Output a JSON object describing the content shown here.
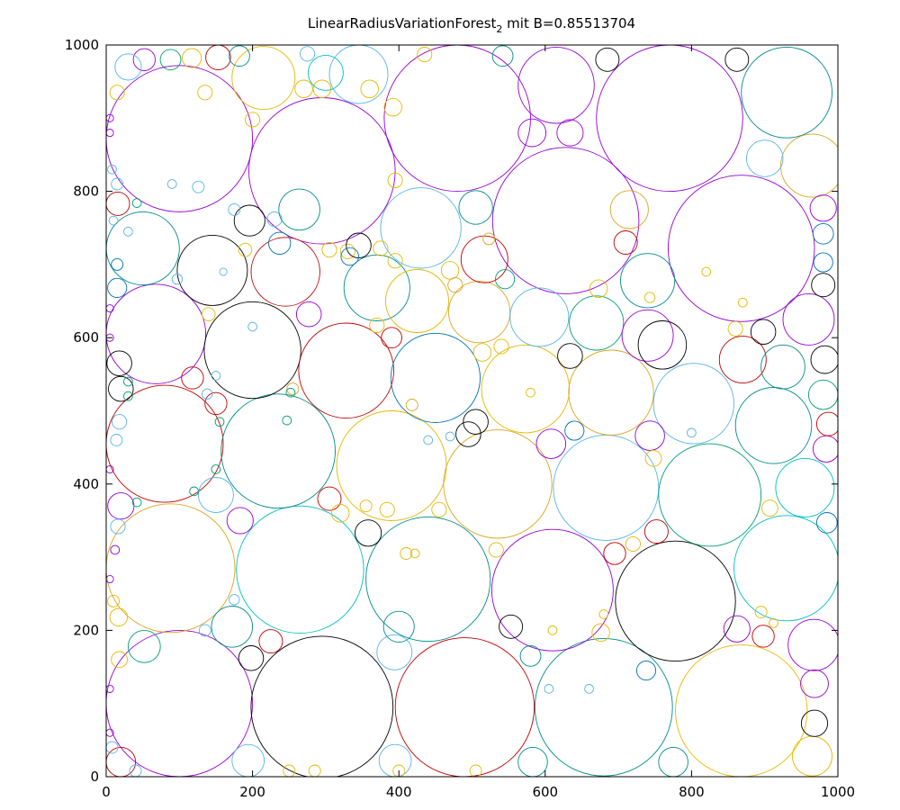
{
  "chart_data": {
    "type": "scatter",
    "title": "LinearRadiusVariationForest",
    "title_subscript": "2",
    "title_suffix": " mit B=0.85513704",
    "xlim": [
      0,
      1000
    ],
    "ylim": [
      0,
      1000
    ],
    "xticks": [
      0,
      200,
      400,
      600,
      800,
      1000
    ],
    "yticks": [
      0,
      200,
      400,
      600,
      800,
      1000
    ],
    "grid": false,
    "legend": "none",
    "colors": {
      "P": "#9400d3",
      "C": "#009e73",
      "L": "#56b4e9",
      "Y": "#e6b800",
      "B": "#0072b2",
      "R": "#c00000",
      "K": "#000000",
      "T": "#008b8b",
      "G": "#daa520",
      "S": "#00bfbf"
    },
    "circles": [
      {
        "x": 100,
        "y": 100,
        "r": 100,
        "c": "P"
      },
      {
        "x": 295,
        "y": 95,
        "r": 97,
        "c": "K"
      },
      {
        "x": 490,
        "y": 95,
        "r": 95,
        "c": "R"
      },
      {
        "x": 680,
        "y": 95,
        "r": 94,
        "c": "T"
      },
      {
        "x": 868,
        "y": 90,
        "r": 90,
        "c": "Y"
      },
      {
        "x": 88,
        "y": 285,
        "r": 88,
        "c": "G"
      },
      {
        "x": 265,
        "y": 283,
        "r": 87,
        "c": "S"
      },
      {
        "x": 440,
        "y": 270,
        "r": 85,
        "c": "T"
      },
      {
        "x": 610,
        "y": 255,
        "r": 83,
        "c": "P"
      },
      {
        "x": 778,
        "y": 240,
        "r": 82,
        "c": "K"
      },
      {
        "x": 930,
        "y": 285,
        "r": 72,
        "c": "S"
      },
      {
        "x": 80,
        "y": 455,
        "r": 80,
        "c": "R"
      },
      {
        "x": 235,
        "y": 445,
        "r": 78,
        "c": "T"
      },
      {
        "x": 390,
        "y": 425,
        "r": 75,
        "c": "Y"
      },
      {
        "x": 535,
        "y": 400,
        "r": 74,
        "c": "G"
      },
      {
        "x": 683,
        "y": 395,
        "r": 72,
        "c": "L"
      },
      {
        "x": 825,
        "y": 385,
        "r": 70,
        "c": "C"
      },
      {
        "x": 955,
        "y": 395,
        "r": 40,
        "c": "S"
      },
      {
        "x": 68,
        "y": 605,
        "r": 68,
        "c": "P"
      },
      {
        "x": 200,
        "y": 583,
        "r": 66,
        "c": "K"
      },
      {
        "x": 328,
        "y": 555,
        "r": 65,
        "c": "R"
      },
      {
        "x": 450,
        "y": 545,
        "r": 61,
        "c": "B"
      },
      {
        "x": 573,
        "y": 530,
        "r": 60,
        "c": "Y"
      },
      {
        "x": 690,
        "y": 525,
        "r": 58,
        "c": "G"
      },
      {
        "x": 803,
        "y": 510,
        "r": 55,
        "c": "L"
      },
      {
        "x": 912,
        "y": 480,
        "r": 52,
        "c": "T"
      },
      {
        "x": 100,
        "y": 872,
        "r": 100,
        "c": "P"
      },
      {
        "x": 295,
        "y": 828,
        "r": 100,
        "c": "P"
      },
      {
        "x": 480,
        "y": 900,
        "r": 100,
        "c": "P"
      },
      {
        "x": 628,
        "y": 760,
        "r": 100,
        "c": "P"
      },
      {
        "x": 770,
        "y": 900,
        "r": 100,
        "c": "P"
      },
      {
        "x": 868,
        "y": 722,
        "r": 100,
        "c": "P"
      },
      {
        "x": 930,
        "y": 935,
        "r": 62,
        "c": "T"
      },
      {
        "x": 615,
        "y": 945,
        "r": 52,
        "c": "P"
      },
      {
        "x": 345,
        "y": 960,
        "r": 40,
        "c": "L"
      },
      {
        "x": 215,
        "y": 955,
        "r": 43,
        "c": "Y"
      },
      {
        "x": 50,
        "y": 722,
        "r": 50,
        "c": "T"
      },
      {
        "x": 145,
        "y": 692,
        "r": 48,
        "c": "K"
      },
      {
        "x": 245,
        "y": 690,
        "r": 47,
        "c": "R"
      },
      {
        "x": 370,
        "y": 668,
        "r": 45,
        "c": "T"
      },
      {
        "x": 430,
        "y": 750,
        "r": 55,
        "c": "L"
      },
      {
        "x": 425,
        "y": 650,
        "r": 43,
        "c": "Y"
      },
      {
        "x": 510,
        "y": 635,
        "r": 42,
        "c": "G"
      },
      {
        "x": 592,
        "y": 628,
        "r": 40,
        "c": "L"
      },
      {
        "x": 670,
        "y": 620,
        "r": 37,
        "c": "C"
      },
      {
        "x": 740,
        "y": 678,
        "r": 37,
        "c": "T"
      },
      {
        "x": 740,
        "y": 603,
        "r": 35,
        "c": "P"
      },
      {
        "x": 870,
        "y": 570,
        "r": 32,
        "c": "R"
      },
      {
        "x": 960,
        "y": 625,
        "r": 35,
        "c": "P"
      },
      {
        "x": 925,
        "y": 560,
        "r": 30,
        "c": "T"
      },
      {
        "x": 965,
        "y": 835,
        "r": 43,
        "c": "G"
      },
      {
        "x": 900,
        "y": 845,
        "r": 25,
        "c": "L"
      },
      {
        "x": 517,
        "y": 707,
        "r": 32,
        "c": "R"
      },
      {
        "x": 967,
        "y": 180,
        "r": 35,
        "c": "P"
      },
      {
        "x": 965,
        "y": 28,
        "r": 27,
        "c": "Y"
      },
      {
        "x": 968,
        "y": 73,
        "r": 18,
        "c": "K"
      },
      {
        "x": 968,
        "y": 127,
        "r": 19,
        "c": "P"
      },
      {
        "x": 760,
        "y": 590,
        "r": 33,
        "c": "K"
      },
      {
        "x": 52,
        "y": 178,
        "r": 22,
        "c": "C"
      },
      {
        "x": 172,
        "y": 205,
        "r": 28,
        "c": "T"
      },
      {
        "x": 400,
        "y": 205,
        "r": 21,
        "c": "T"
      },
      {
        "x": 394,
        "y": 170,
        "r": 24,
        "c": "L"
      },
      {
        "x": 194,
        "y": 22,
        "r": 22,
        "c": "L"
      },
      {
        "x": 395,
        "y": 22,
        "r": 22,
        "c": "L"
      },
      {
        "x": 583,
        "y": 20,
        "r": 20,
        "c": "T"
      },
      {
        "x": 775,
        "y": 20,
        "r": 20,
        "c": "T"
      },
      {
        "x": 150,
        "y": 385,
        "r": 24,
        "c": "L"
      },
      {
        "x": 183,
        "y": 350,
        "r": 18,
        "c": "P"
      },
      {
        "x": 358,
        "y": 333,
        "r": 18,
        "c": "K"
      },
      {
        "x": 305,
        "y": 380,
        "r": 16,
        "c": "R"
      },
      {
        "x": 320,
        "y": 360,
        "r": 12,
        "c": "Y"
      },
      {
        "x": 495,
        "y": 468,
        "r": 17,
        "c": "K"
      },
      {
        "x": 505,
        "y": 485,
        "r": 17,
        "c": "K"
      },
      {
        "x": 608,
        "y": 455,
        "r": 20,
        "c": "P"
      },
      {
        "x": 640,
        "y": 473,
        "r": 13,
        "c": "B"
      },
      {
        "x": 743,
        "y": 466,
        "r": 20,
        "c": "P"
      },
      {
        "x": 748,
        "y": 435,
        "r": 11,
        "c": "Y"
      },
      {
        "x": 752,
        "y": 335,
        "r": 16,
        "c": "R"
      },
      {
        "x": 695,
        "y": 305,
        "r": 15,
        "c": "R"
      },
      {
        "x": 720,
        "y": 318,
        "r": 10,
        "c": "Y"
      },
      {
        "x": 862,
        "y": 202,
        "r": 18,
        "c": "P"
      },
      {
        "x": 898,
        "y": 192,
        "r": 15,
        "c": "R"
      },
      {
        "x": 985,
        "y": 347,
        "r": 14,
        "c": "B"
      },
      {
        "x": 907,
        "y": 367,
        "r": 11,
        "c": "Y"
      },
      {
        "x": 984,
        "y": 448,
        "r": 18,
        "c": "P"
      },
      {
        "x": 987,
        "y": 482,
        "r": 16,
        "c": "R"
      },
      {
        "x": 980,
        "y": 522,
        "r": 20,
        "c": "C"
      },
      {
        "x": 982,
        "y": 570,
        "r": 19,
        "c": "K"
      },
      {
        "x": 980,
        "y": 672,
        "r": 16,
        "c": "K"
      },
      {
        "x": 980,
        "y": 703,
        "r": 13,
        "c": "B"
      },
      {
        "x": 980,
        "y": 742,
        "r": 14,
        "c": "B"
      },
      {
        "x": 980,
        "y": 777,
        "r": 18,
        "c": "P"
      },
      {
        "x": 898,
        "y": 608,
        "r": 17,
        "c": "K"
      },
      {
        "x": 860,
        "y": 612,
        "r": 10,
        "c": "Y"
      },
      {
        "x": 676,
        "y": 197,
        "r": 12,
        "c": "Y"
      },
      {
        "x": 553,
        "y": 205,
        "r": 16,
        "c": "K"
      },
      {
        "x": 580,
        "y": 165,
        "r": 14,
        "c": "T"
      },
      {
        "x": 738,
        "y": 145,
        "r": 13,
        "c": "B"
      },
      {
        "x": 198,
        "y": 162,
        "r": 17,
        "c": "K"
      },
      {
        "x": 225,
        "y": 185,
        "r": 16,
        "c": "R"
      },
      {
        "x": 175,
        "y": 242,
        "r": 7,
        "c": "L"
      },
      {
        "x": 135,
        "y": 200,
        "r": 8,
        "c": "L"
      },
      {
        "x": 18,
        "y": 160,
        "r": 11,
        "c": "Y"
      },
      {
        "x": 17,
        "y": 218,
        "r": 12,
        "c": "Y"
      },
      {
        "x": 10,
        "y": 240,
        "r": 8,
        "c": "Y"
      },
      {
        "x": 20,
        "y": 20,
        "r": 20,
        "c": "R"
      },
      {
        "x": 8,
        "y": 40,
        "r": 8,
        "c": "L"
      },
      {
        "x": 40,
        "y": 8,
        "r": 8,
        "c": "L"
      },
      {
        "x": 250,
        "y": 8,
        "r": 8,
        "c": "Y"
      },
      {
        "x": 285,
        "y": 8,
        "r": 8,
        "c": "Y"
      },
      {
        "x": 400,
        "y": 8,
        "r": 8,
        "c": "Y"
      },
      {
        "x": 505,
        "y": 8,
        "r": 8,
        "c": "Y"
      },
      {
        "x": 18,
        "y": 565,
        "r": 17,
        "c": "K"
      },
      {
        "x": 20,
        "y": 530,
        "r": 17,
        "c": "K"
      },
      {
        "x": 18,
        "y": 485,
        "r": 10,
        "c": "L"
      },
      {
        "x": 14,
        "y": 460,
        "r": 8,
        "c": "L"
      },
      {
        "x": 20,
        "y": 370,
        "r": 18,
        "c": "P"
      },
      {
        "x": 16,
        "y": 342,
        "r": 10,
        "c": "L"
      },
      {
        "x": 42,
        "y": 375,
        "r": 6,
        "c": "C"
      },
      {
        "x": 12,
        "y": 310,
        "r": 6,
        "c": "P"
      },
      {
        "x": 15,
        "y": 668,
        "r": 13,
        "c": "B"
      },
      {
        "x": 15,
        "y": 700,
        "r": 8,
        "c": "B"
      },
      {
        "x": 16,
        "y": 783,
        "r": 16,
        "c": "R"
      },
      {
        "x": 15,
        "y": 810,
        "r": 8,
        "c": "L"
      },
      {
        "x": 8,
        "y": 830,
        "r": 6,
        "c": "L"
      },
      {
        "x": 10,
        "y": 760,
        "r": 6,
        "c": "L"
      },
      {
        "x": 30,
        "y": 745,
        "r": 6,
        "c": "L"
      },
      {
        "x": 42,
        "y": 784,
        "r": 6,
        "c": "C"
      },
      {
        "x": 52,
        "y": 980,
        "r": 15,
        "c": "P"
      },
      {
        "x": 30,
        "y": 970,
        "r": 18,
        "c": "L"
      },
      {
        "x": 15,
        "y": 935,
        "r": 10,
        "c": "Y"
      },
      {
        "x": 88,
        "y": 980,
        "r": 14,
        "c": "C"
      },
      {
        "x": 117,
        "y": 982,
        "r": 13,
        "c": "Y"
      },
      {
        "x": 153,
        "y": 983,
        "r": 17,
        "c": "R"
      },
      {
        "x": 182,
        "y": 985,
        "r": 14,
        "c": "T"
      },
      {
        "x": 196,
        "y": 760,
        "r": 21,
        "c": "K"
      },
      {
        "x": 230,
        "y": 762,
        "r": 10,
        "c": "L"
      },
      {
        "x": 237,
        "y": 729,
        "r": 15,
        "c": "B"
      },
      {
        "x": 190,
        "y": 720,
        "r": 9,
        "c": "Y"
      },
      {
        "x": 175,
        "y": 775,
        "r": 8,
        "c": "L"
      },
      {
        "x": 305,
        "y": 720,
        "r": 10,
        "c": "Y"
      },
      {
        "x": 330,
        "y": 718,
        "r": 10,
        "c": "Y"
      },
      {
        "x": 277,
        "y": 632,
        "r": 17,
        "c": "P"
      },
      {
        "x": 264,
        "y": 775,
        "r": 28,
        "c": "T"
      },
      {
        "x": 345,
        "y": 726,
        "r": 17,
        "c": "K"
      },
      {
        "x": 333,
        "y": 711,
        "r": 12,
        "c": "B"
      },
      {
        "x": 375,
        "y": 722,
        "r": 10,
        "c": "Y"
      },
      {
        "x": 395,
        "y": 705,
        "r": 10,
        "c": "Y"
      },
      {
        "x": 370,
        "y": 617,
        "r": 10,
        "c": "Y"
      },
      {
        "x": 390,
        "y": 600,
        "r": 14,
        "c": "R"
      },
      {
        "x": 470,
        "y": 692,
        "r": 12,
        "c": "Y"
      },
      {
        "x": 477,
        "y": 672,
        "r": 10,
        "c": "G"
      },
      {
        "x": 545,
        "y": 680,
        "r": 13,
        "c": "C"
      },
      {
        "x": 523,
        "y": 735,
        "r": 8,
        "c": "G"
      },
      {
        "x": 505,
        "y": 778,
        "r": 23,
        "c": "T"
      },
      {
        "x": 540,
        "y": 588,
        "r": 10,
        "c": "Y"
      },
      {
        "x": 514,
        "y": 580,
        "r": 12,
        "c": "Y"
      },
      {
        "x": 634,
        "y": 575,
        "r": 17,
        "c": "K"
      },
      {
        "x": 673,
        "y": 667,
        "r": 12,
        "c": "Y"
      },
      {
        "x": 710,
        "y": 730,
        "r": 16,
        "c": "R"
      },
      {
        "x": 715,
        "y": 775,
        "r": 26,
        "c": "G"
      },
      {
        "x": 582,
        "y": 880,
        "r": 19,
        "c": "P"
      },
      {
        "x": 634,
        "y": 880,
        "r": 18,
        "c": "P"
      },
      {
        "x": 685,
        "y": 980,
        "r": 16,
        "c": "K"
      },
      {
        "x": 862,
        "y": 980,
        "r": 16,
        "c": "K"
      },
      {
        "x": 542,
        "y": 985,
        "r": 14,
        "c": "T"
      },
      {
        "x": 435,
        "y": 987,
        "r": 10,
        "c": "Y"
      },
      {
        "x": 392,
        "y": 915,
        "r": 12,
        "c": "Y"
      },
      {
        "x": 395,
        "y": 815,
        "r": 10,
        "c": "Y"
      },
      {
        "x": 200,
        "y": 898,
        "r": 10,
        "c": "Y"
      },
      {
        "x": 270,
        "y": 940,
        "r": 12,
        "c": "Y"
      },
      {
        "x": 295,
        "y": 940,
        "r": 12,
        "c": "Y"
      },
      {
        "x": 360,
        "y": 940,
        "r": 12,
        "c": "Y"
      },
      {
        "x": 275,
        "y": 988,
        "r": 10,
        "c": "L"
      },
      {
        "x": 300,
        "y": 962,
        "r": 24,
        "c": "S"
      },
      {
        "x": 135,
        "y": 935,
        "r": 10,
        "c": "Y"
      },
      {
        "x": 118,
        "y": 545,
        "r": 15,
        "c": "R"
      },
      {
        "x": 150,
        "y": 510,
        "r": 15,
        "c": "R"
      },
      {
        "x": 155,
        "y": 485,
        "r": 6,
        "c": "C"
      },
      {
        "x": 150,
        "y": 548,
        "r": 6,
        "c": "L"
      },
      {
        "x": 138,
        "y": 523,
        "r": 7,
        "c": "L"
      },
      {
        "x": 255,
        "y": 530,
        "r": 8,
        "c": "G"
      },
      {
        "x": 140,
        "y": 632,
        "r": 9,
        "c": "Y"
      },
      {
        "x": 97,
        "y": 680,
        "r": 7,
        "c": "L"
      },
      {
        "x": 120,
        "y": 390,
        "r": 6,
        "c": "C"
      },
      {
        "x": 150,
        "y": 420,
        "r": 6,
        "c": "C"
      },
      {
        "x": 30,
        "y": 540,
        "r": 6,
        "c": "C"
      },
      {
        "x": 30,
        "y": 520,
        "r": 6,
        "c": "C"
      },
      {
        "x": 5,
        "y": 600,
        "r": 5,
        "c": "P"
      },
      {
        "x": 5,
        "y": 640,
        "r": 5,
        "c": "P"
      },
      {
        "x": 5,
        "y": 880,
        "r": 5,
        "c": "P"
      },
      {
        "x": 5,
        "y": 900,
        "r": 5,
        "c": "P"
      },
      {
        "x": 5,
        "y": 420,
        "r": 5,
        "c": "P"
      },
      {
        "x": 5,
        "y": 270,
        "r": 5,
        "c": "P"
      },
      {
        "x": 5,
        "y": 120,
        "r": 5,
        "c": "P"
      },
      {
        "x": 5,
        "y": 60,
        "r": 5,
        "c": "P"
      },
      {
        "x": 410,
        "y": 305,
        "r": 8,
        "c": "Y"
      },
      {
        "x": 422,
        "y": 305,
        "r": 6,
        "c": "Y"
      },
      {
        "x": 533,
        "y": 310,
        "r": 10,
        "c": "Y"
      },
      {
        "x": 455,
        "y": 365,
        "r": 10,
        "c": "Y"
      },
      {
        "x": 384,
        "y": 365,
        "r": 10,
        "c": "Y"
      },
      {
        "x": 355,
        "y": 370,
        "r": 8,
        "c": "Y"
      },
      {
        "x": 418,
        "y": 508,
        "r": 8,
        "c": "G"
      },
      {
        "x": 580,
        "y": 525,
        "r": 6,
        "c": "Y"
      },
      {
        "x": 895,
        "y": 225,
        "r": 8,
        "c": "Y"
      },
      {
        "x": 912,
        "y": 210,
        "r": 6,
        "c": "Y"
      },
      {
        "x": 743,
        "y": 655,
        "r": 7,
        "c": "Y"
      },
      {
        "x": 870,
        "y": 648,
        "r": 6,
        "c": "Y"
      },
      {
        "x": 820,
        "y": 690,
        "r": 6,
        "c": "Y"
      },
      {
        "x": 610,
        "y": 200,
        "r": 6,
        "c": "Y"
      },
      {
        "x": 680,
        "y": 222,
        "r": 6,
        "c": "Y"
      },
      {
        "x": 247,
        "y": 487,
        "r": 6,
        "c": "C"
      },
      {
        "x": 252,
        "y": 525,
        "r": 6,
        "c": "C"
      },
      {
        "x": 90,
        "y": 810,
        "r": 6,
        "c": "L"
      },
      {
        "x": 126,
        "y": 806,
        "r": 8,
        "c": "L"
      },
      {
        "x": 160,
        "y": 690,
        "r": 5,
        "c": "L"
      },
      {
        "x": 200,
        "y": 615,
        "r": 6,
        "c": "L"
      },
      {
        "x": 440,
        "y": 460,
        "r": 6,
        "c": "L"
      },
      {
        "x": 470,
        "y": 465,
        "r": 6,
        "c": "L"
      },
      {
        "x": 800,
        "y": 470,
        "r": 6,
        "c": "L"
      },
      {
        "x": 605,
        "y": 120,
        "r": 6,
        "c": "L"
      },
      {
        "x": 660,
        "y": 120,
        "r": 6,
        "c": "L"
      }
    ]
  }
}
